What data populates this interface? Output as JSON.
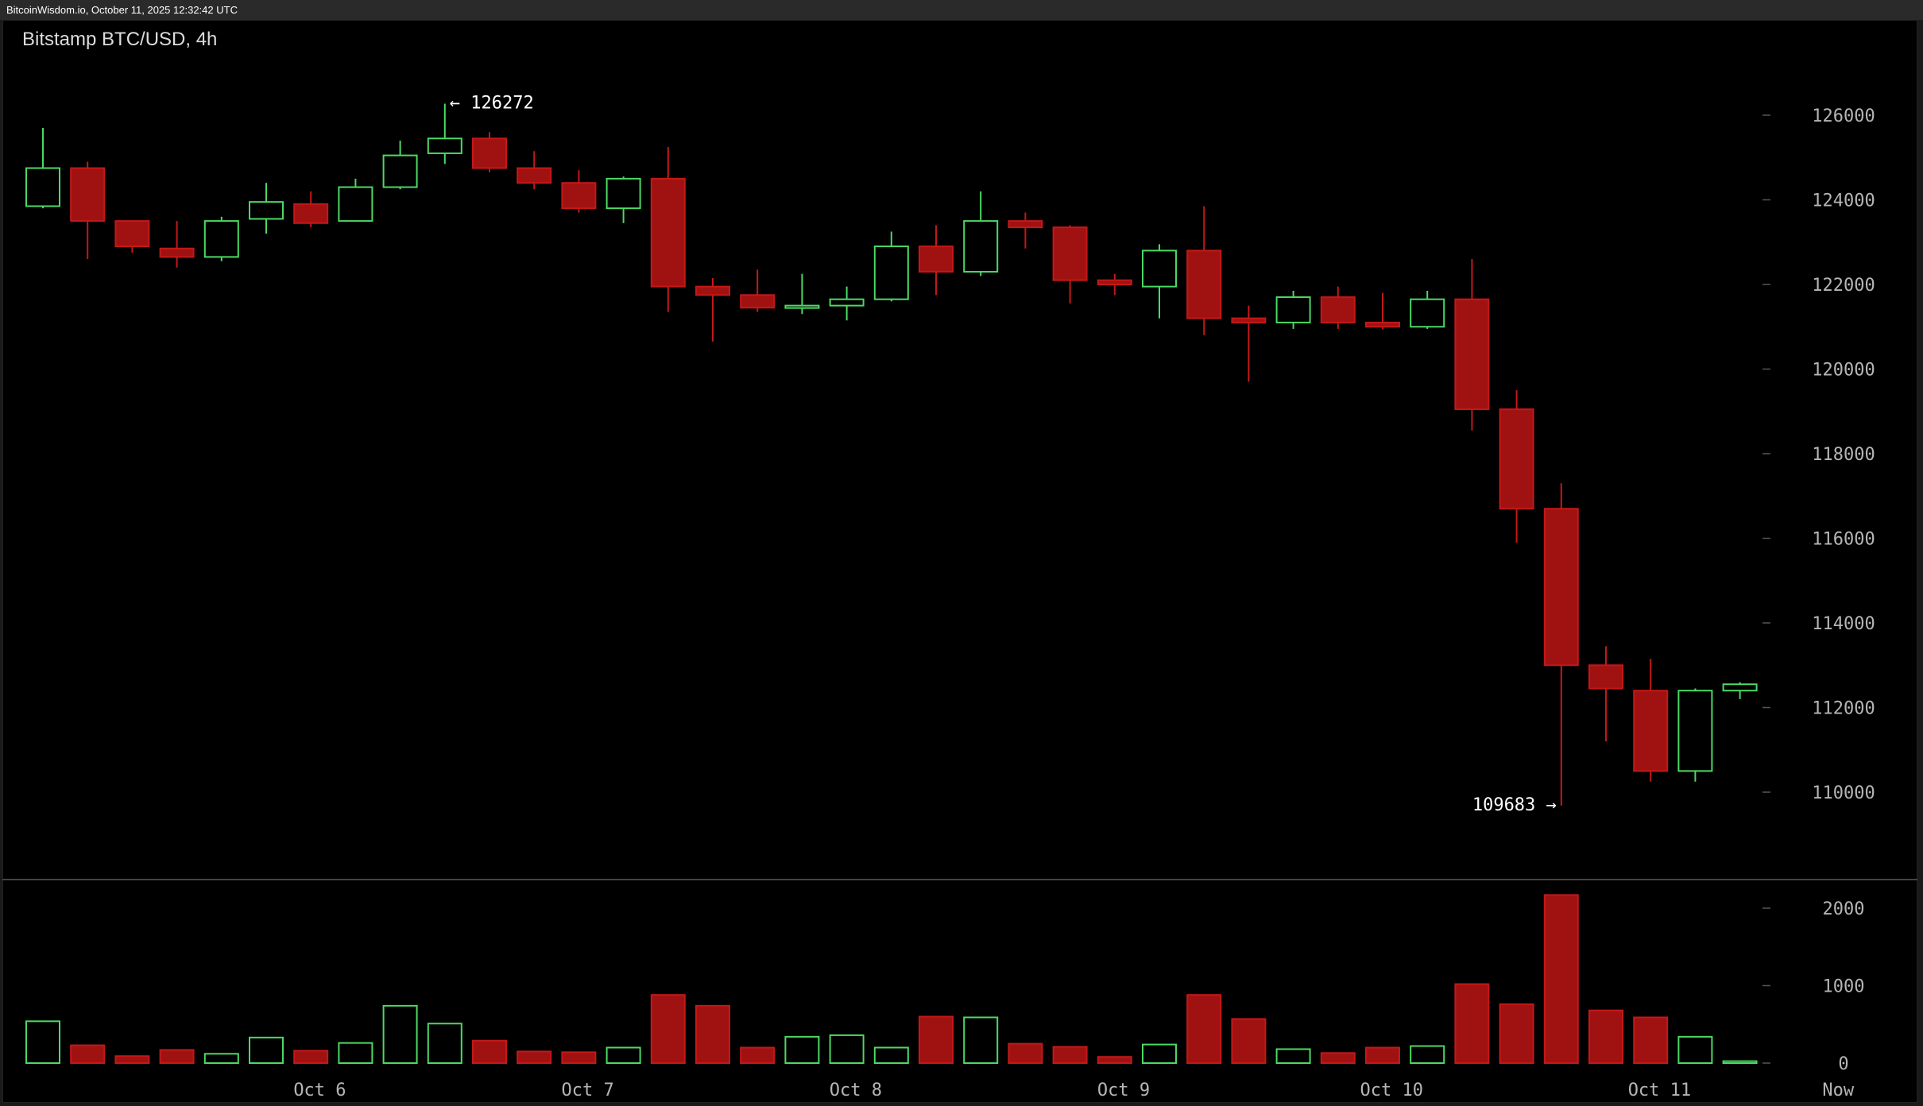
{
  "header": {
    "topbar_text": "BitcoinWisdom.io, October 11, 2025 12:32:42 UTC",
    "title": "Bitstamp BTC/USD, 4h"
  },
  "colors": {
    "up": "#4cd964",
    "down": "#a01212",
    "down_border": "#c41818",
    "axis_text": "#b5b5b5",
    "background": "#000000"
  },
  "chart_data": {
    "type": "candlestick",
    "timeframe": "4h",
    "price_axis": {
      "range": [
        108000,
        128000
      ],
      "ticks": [
        110000,
        112000,
        114000,
        116000,
        118000,
        120000,
        122000,
        124000,
        126000
      ]
    },
    "volume_axis": {
      "range": [
        0,
        2350
      ],
      "ticks": [
        0,
        1000,
        2000
      ]
    },
    "x_labels": [
      {
        "label": "Oct 6",
        "index": 6.2
      },
      {
        "label": "Oct 7",
        "index": 12.2
      },
      {
        "label": "Oct 8",
        "index": 18.2
      },
      {
        "label": "Oct 9",
        "index": 24.2
      },
      {
        "label": "Oct 10",
        "index": 30.2
      },
      {
        "label": "Oct 11",
        "index": 36.2
      },
      {
        "label": "Now",
        "index": 40.2
      }
    ],
    "annotations": [
      {
        "label": "← 126272",
        "index": 9,
        "value": 126272,
        "side": "right"
      },
      {
        "label": "109683 →",
        "index": 34,
        "value": 109683,
        "side": "left"
      }
    ],
    "candles": [
      {
        "o": 123850,
        "h": 125700,
        "l": 123800,
        "c": 124750,
        "v": 540
      },
      {
        "o": 124750,
        "h": 124900,
        "l": 122600,
        "c": 123500,
        "v": 230
      },
      {
        "o": 123500,
        "h": 123500,
        "l": 122750,
        "c": 122900,
        "v": 90
      },
      {
        "o": 122850,
        "h": 123500,
        "l": 122400,
        "c": 122650,
        "v": 170
      },
      {
        "o": 122650,
        "h": 123600,
        "l": 122550,
        "c": 123500,
        "v": 120
      },
      {
        "o": 123550,
        "h": 124400,
        "l": 123200,
        "c": 123950,
        "v": 330
      },
      {
        "o": 123900,
        "h": 124200,
        "l": 123350,
        "c": 123450,
        "v": 160
      },
      {
        "o": 123500,
        "h": 124500,
        "l": 123500,
        "c": 124300,
        "v": 260
      },
      {
        "o": 124300,
        "h": 125400,
        "l": 124250,
        "c": 125050,
        "v": 740
      },
      {
        "o": 125100,
        "h": 126272,
        "l": 124850,
        "c": 125450,
        "v": 510
      },
      {
        "o": 125450,
        "h": 125600,
        "l": 124650,
        "c": 124750,
        "v": 290
      },
      {
        "o": 124750,
        "h": 125150,
        "l": 124250,
        "c": 124400,
        "v": 150
      },
      {
        "o": 124400,
        "h": 124700,
        "l": 123700,
        "c": 123800,
        "v": 140
      },
      {
        "o": 123800,
        "h": 124550,
        "l": 123450,
        "c": 124500,
        "v": 200
      },
      {
        "o": 124500,
        "h": 125250,
        "l": 121350,
        "c": 121950,
        "v": 880
      },
      {
        "o": 121950,
        "h": 122150,
        "l": 120650,
        "c": 121750,
        "v": 740
      },
      {
        "o": 121750,
        "h": 122350,
        "l": 121350,
        "c": 121450,
        "v": 200
      },
      {
        "o": 121450,
        "h": 122250,
        "l": 121300,
        "c": 121500,
        "v": 340
      },
      {
        "o": 121500,
        "h": 121950,
        "l": 121150,
        "c": 121650,
        "v": 360
      },
      {
        "o": 121650,
        "h": 123250,
        "l": 121600,
        "c": 122900,
        "v": 200
      },
      {
        "o": 122900,
        "h": 123400,
        "l": 121750,
        "c": 122300,
        "v": 600
      },
      {
        "o": 122300,
        "h": 124200,
        "l": 122200,
        "c": 123500,
        "v": 590
      },
      {
        "o": 123500,
        "h": 123700,
        "l": 122850,
        "c": 123350,
        "v": 250
      },
      {
        "o": 123350,
        "h": 123400,
        "l": 121550,
        "c": 122100,
        "v": 210
      },
      {
        "o": 122100,
        "h": 122250,
        "l": 121750,
        "c": 122000,
        "v": 80
      },
      {
        "o": 121950,
        "h": 122950,
        "l": 121200,
        "c": 122800,
        "v": 240
      },
      {
        "o": 122800,
        "h": 123850,
        "l": 120800,
        "c": 121200,
        "v": 880
      },
      {
        "o": 121200,
        "h": 121500,
        "l": 119700,
        "c": 121100,
        "v": 570
      },
      {
        "o": 121100,
        "h": 121850,
        "l": 120950,
        "c": 121700,
        "v": 180
      },
      {
        "o": 121700,
        "h": 121950,
        "l": 120950,
        "c": 121100,
        "v": 130
      },
      {
        "o": 121100,
        "h": 121800,
        "l": 120950,
        "c": 121000,
        "v": 200
      },
      {
        "o": 121000,
        "h": 121850,
        "l": 120950,
        "c": 121650,
        "v": 220
      },
      {
        "o": 121650,
        "h": 122600,
        "l": 118550,
        "c": 119050,
        "v": 1020
      },
      {
        "o": 119050,
        "h": 119500,
        "l": 115900,
        "c": 116700,
        "v": 760
      },
      {
        "o": 116700,
        "h": 117300,
        "l": 109683,
        "c": 113000,
        "v": 2170
      },
      {
        "o": 113000,
        "h": 113450,
        "l": 111200,
        "c": 112450,
        "v": 680
      },
      {
        "o": 112400,
        "h": 113150,
        "l": 110250,
        "c": 110500,
        "v": 590
      },
      {
        "o": 110500,
        "h": 112450,
        "l": 110250,
        "c": 112400,
        "v": 340
      },
      {
        "o": 112400,
        "h": 112600,
        "l": 112200,
        "c": 112550,
        "v": 25
      }
    ]
  }
}
